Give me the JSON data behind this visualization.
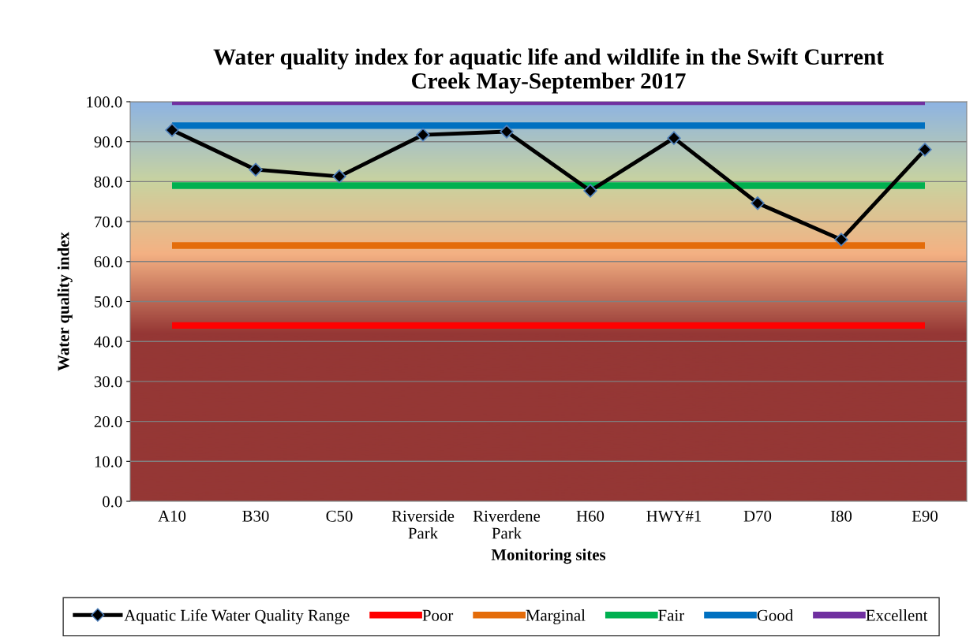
{
  "chart_data": {
    "type": "line",
    "title": "Water quality index for aquatic life and wildlife in the Swift Current\nCreek May-September 2017",
    "xlabel": "Monitoring sites",
    "ylabel": "Water quality index",
    "categories": [
      "A10",
      "B30",
      "C50",
      "Riverside Park",
      "Riverdene Park",
      "H60",
      "HWY#1",
      "D70",
      "I80",
      "E90"
    ],
    "series": [
      {
        "name": "Aquatic Life Water Quality Range",
        "color": "#000000",
        "marker": "diamond",
        "values": [
          92.9,
          83.0,
          81.3,
          91.7,
          92.5,
          77.7,
          90.9,
          74.6,
          65.5,
          88.0
        ]
      },
      {
        "name": "Poor",
        "color": "#ff0000",
        "marker": "none",
        "values": [
          44,
          44,
          44,
          44,
          44,
          44,
          44,
          44,
          44,
          44
        ]
      },
      {
        "name": "Marginal",
        "color": "#e46c0a",
        "marker": "none",
        "values": [
          64,
          64,
          64,
          64,
          64,
          64,
          64,
          64,
          64,
          64
        ]
      },
      {
        "name": "Fair",
        "color": "#00b050",
        "marker": "none",
        "values": [
          79,
          79,
          79,
          79,
          79,
          79,
          79,
          79,
          79,
          79
        ]
      },
      {
        "name": "Good",
        "color": "#0070c0",
        "marker": "none",
        "values": [
          94,
          94,
          94,
          94,
          94,
          94,
          94,
          94,
          94,
          94
        ]
      },
      {
        "name": "Excellent",
        "color": "#7030a0",
        "marker": "none",
        "values": [
          100,
          100,
          100,
          100,
          100,
          100,
          100,
          100,
          100,
          100
        ]
      }
    ],
    "ylim": [
      0,
      100
    ],
    "yticks": [
      {
        "value": 0,
        "label": "0.0"
      },
      {
        "value": 10,
        "label": "10.0"
      },
      {
        "value": 20,
        "label": "20.0"
      },
      {
        "value": 30,
        "label": "30.0"
      },
      {
        "value": 40,
        "label": "40.0"
      },
      {
        "value": 50,
        "label": "50.0"
      },
      {
        "value": 60,
        "label": "60.0"
      },
      {
        "value": 70,
        "label": "70.0"
      },
      {
        "value": 80,
        "label": "80.0"
      },
      {
        "value": 90,
        "label": "90.0"
      },
      {
        "value": 100,
        "label": "100.0"
      }
    ],
    "grid": "y",
    "legend": "bottom",
    "line_style": "solid"
  }
}
